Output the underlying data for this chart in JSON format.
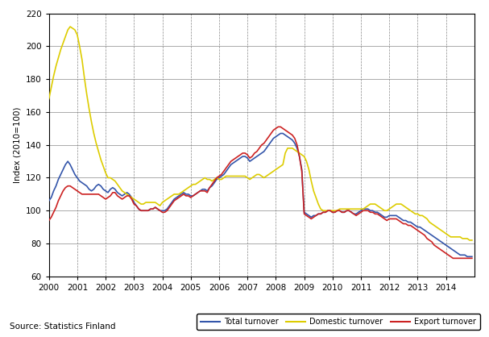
{
  "title": "",
  "ylabel": "Index (2010=100)",
  "xlabel": "",
  "ylim": [
    60,
    220
  ],
  "yticks": [
    60,
    80,
    100,
    120,
    140,
    160,
    180,
    200,
    220
  ],
  "background_color": "#ffffff",
  "plot_bg_color": "#ffffff",
  "grid_color_h": "#888888",
  "grid_color_v": "#888888",
  "total_color": "#3355aa",
  "domestic_color": "#ddcc00",
  "export_color": "#cc2222",
  "source_text": "Source: Statistics Finland",
  "legend_labels": [
    "Total turnover",
    "Domestic turnover",
    "Export turnover"
  ],
  "x": [
    2000.0,
    2000.083,
    2000.167,
    2000.25,
    2000.333,
    2000.417,
    2000.5,
    2000.583,
    2000.667,
    2000.75,
    2000.833,
    2000.917,
    2001.0,
    2001.083,
    2001.167,
    2001.25,
    2001.333,
    2001.417,
    2001.5,
    2001.583,
    2001.667,
    2001.75,
    2001.833,
    2001.917,
    2002.0,
    2002.083,
    2002.167,
    2002.25,
    2002.333,
    2002.417,
    2002.5,
    2002.583,
    2002.667,
    2002.75,
    2002.833,
    2002.917,
    2003.0,
    2003.083,
    2003.167,
    2003.25,
    2003.333,
    2003.417,
    2003.5,
    2003.583,
    2003.667,
    2003.75,
    2003.833,
    2003.917,
    2004.0,
    2004.083,
    2004.167,
    2004.25,
    2004.333,
    2004.417,
    2004.5,
    2004.583,
    2004.667,
    2004.75,
    2004.833,
    2004.917,
    2005.0,
    2005.083,
    2005.167,
    2005.25,
    2005.333,
    2005.417,
    2005.5,
    2005.583,
    2005.667,
    2005.75,
    2005.833,
    2005.917,
    2006.0,
    2006.083,
    2006.167,
    2006.25,
    2006.333,
    2006.417,
    2006.5,
    2006.583,
    2006.667,
    2006.75,
    2006.833,
    2006.917,
    2007.0,
    2007.083,
    2007.167,
    2007.25,
    2007.333,
    2007.417,
    2007.5,
    2007.583,
    2007.667,
    2007.75,
    2007.833,
    2007.917,
    2008.0,
    2008.083,
    2008.167,
    2008.25,
    2008.333,
    2008.417,
    2008.5,
    2008.583,
    2008.667,
    2008.75,
    2008.833,
    2008.917,
    2009.0,
    2009.083,
    2009.167,
    2009.25,
    2009.333,
    2009.417,
    2009.5,
    2009.583,
    2009.667,
    2009.75,
    2009.833,
    2009.917,
    2010.0,
    2010.083,
    2010.167,
    2010.25,
    2010.333,
    2010.417,
    2010.5,
    2010.583,
    2010.667,
    2010.75,
    2010.833,
    2010.917,
    2011.0,
    2011.083,
    2011.167,
    2011.25,
    2011.333,
    2011.417,
    2011.5,
    2011.583,
    2011.667,
    2011.75,
    2011.833,
    2011.917,
    2012.0,
    2012.083,
    2012.167,
    2012.25,
    2012.333,
    2012.417,
    2012.5,
    2012.583,
    2012.667,
    2012.75,
    2012.833,
    2012.917,
    2013.0,
    2013.083,
    2013.167,
    2013.25,
    2013.333,
    2013.417,
    2013.5,
    2013.583,
    2013.667,
    2013.75,
    2013.833,
    2013.917,
    2014.0,
    2014.083,
    2014.167,
    2014.25,
    2014.333,
    2014.417,
    2014.5,
    2014.583,
    2014.667,
    2014.75,
    2014.833,
    2014.917
  ],
  "total": [
    106,
    108,
    112,
    115,
    119,
    122,
    125,
    128,
    130,
    128,
    125,
    122,
    120,
    118,
    117,
    116,
    115,
    113,
    112,
    113,
    115,
    116,
    115,
    113,
    112,
    111,
    113,
    114,
    113,
    111,
    110,
    109,
    110,
    111,
    110,
    108,
    105,
    103,
    101,
    100,
    100,
    100,
    100,
    101,
    101,
    102,
    101,
    100,
    100,
    100,
    101,
    103,
    105,
    107,
    108,
    109,
    110,
    111,
    110,
    110,
    109,
    109,
    110,
    111,
    112,
    113,
    113,
    112,
    114,
    115,
    117,
    119,
    120,
    121,
    122,
    124,
    126,
    128,
    129,
    130,
    131,
    132,
    133,
    133,
    132,
    130,
    131,
    132,
    133,
    134,
    135,
    136,
    138,
    140,
    142,
    144,
    145,
    146,
    147,
    147,
    146,
    145,
    144,
    143,
    141,
    138,
    133,
    125,
    99,
    98,
    97,
    96,
    97,
    97,
    98,
    98,
    99,
    99,
    100,
    100,
    99,
    99,
    100,
    100,
    99,
    99,
    100,
    100,
    99,
    98,
    98,
    99,
    100,
    101,
    101,
    101,
    100,
    100,
    99,
    99,
    98,
    97,
    96,
    96,
    97,
    97,
    97,
    97,
    96,
    95,
    94,
    94,
    93,
    93,
    92,
    91,
    90,
    90,
    89,
    88,
    87,
    86,
    85,
    84,
    83,
    82,
    81,
    80,
    79,
    78,
    77,
    76,
    75,
    74,
    73,
    73,
    73,
    72,
    72,
    72
  ],
  "domestic": [
    168,
    175,
    182,
    188,
    193,
    198,
    202,
    206,
    210,
    212,
    211,
    210,
    207,
    200,
    192,
    181,
    171,
    162,
    154,
    147,
    141,
    136,
    131,
    127,
    123,
    120,
    120,
    119,
    118,
    116,
    114,
    112,
    111,
    110,
    109,
    108,
    107,
    106,
    105,
    104,
    104,
    105,
    105,
    105,
    105,
    105,
    104,
    103,
    105,
    106,
    107,
    108,
    109,
    110,
    110,
    110,
    111,
    112,
    113,
    114,
    115,
    116,
    116,
    117,
    118,
    119,
    120,
    119,
    119,
    118,
    119,
    120,
    119,
    119,
    120,
    121,
    121,
    121,
    121,
    121,
    121,
    121,
    121,
    121,
    120,
    119,
    120,
    121,
    122,
    122,
    121,
    120,
    121,
    122,
    123,
    124,
    125,
    126,
    127,
    128,
    135,
    138,
    138,
    138,
    137,
    136,
    135,
    134,
    133,
    130,
    125,
    118,
    112,
    108,
    104,
    101,
    100,
    100,
    100,
    100,
    100,
    100,
    100,
    101,
    101,
    101,
    101,
    101,
    101,
    101,
    101,
    101,
    101,
    101,
    102,
    103,
    104,
    104,
    104,
    103,
    102,
    101,
    100,
    100,
    101,
    102,
    103,
    104,
    104,
    104,
    103,
    102,
    101,
    100,
    99,
    98,
    98,
    97,
    97,
    96,
    95,
    93,
    92,
    91,
    90,
    89,
    88,
    87,
    86,
    85,
    84,
    84,
    84,
    84,
    84,
    83,
    83,
    83,
    82,
    82
  ],
  "export": [
    94,
    96,
    99,
    102,
    106,
    109,
    112,
    114,
    115,
    115,
    114,
    113,
    112,
    111,
    110,
    110,
    110,
    110,
    110,
    110,
    110,
    110,
    109,
    108,
    107,
    108,
    109,
    111,
    111,
    109,
    108,
    107,
    108,
    109,
    109,
    107,
    104,
    103,
    101,
    100,
    100,
    100,
    100,
    101,
    101,
    102,
    101,
    100,
    99,
    99,
    100,
    102,
    104,
    106,
    107,
    108,
    109,
    110,
    109,
    109,
    108,
    109,
    110,
    111,
    112,
    112,
    112,
    111,
    114,
    116,
    118,
    120,
    121,
    122,
    124,
    126,
    128,
    130,
    131,
    132,
    133,
    134,
    135,
    135,
    134,
    132,
    133,
    135,
    136,
    138,
    140,
    141,
    143,
    145,
    147,
    149,
    150,
    151,
    151,
    150,
    149,
    148,
    147,
    146,
    144,
    140,
    133,
    124,
    98,
    97,
    96,
    95,
    96,
    97,
    98,
    98,
    99,
    99,
    100,
    100,
    99,
    99,
    100,
    100,
    99,
    99,
    100,
    100,
    99,
    98,
    97,
    98,
    99,
    100,
    100,
    100,
    99,
    99,
    98,
    98,
    97,
    96,
    95,
    94,
    95,
    95,
    95,
    95,
    94,
    93,
    92,
    92,
    91,
    91,
    90,
    89,
    88,
    87,
    86,
    85,
    83,
    82,
    81,
    79,
    78,
    77,
    76,
    75,
    74,
    73,
    72,
    71,
    71,
    71,
    71,
    71,
    71,
    71,
    71,
    71
  ]
}
